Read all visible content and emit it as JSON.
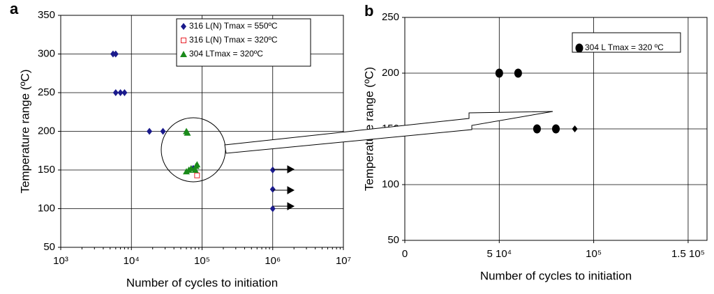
{
  "chart_data": [
    {
      "type": "scatter",
      "panel": "a",
      "x_label": "Number of cycles to initiation",
      "y_label": "Temperature range (ºC)",
      "xlog": true,
      "xlim": [
        1000,
        10000000
      ],
      "ylim": [
        50,
        350
      ],
      "xticks": [
        {
          "value": 1000,
          "label": "10³"
        },
        {
          "value": 10000,
          "label": "10⁴"
        },
        {
          "value": 100000,
          "label": "10⁵"
        },
        {
          "value": 1000000,
          "label": "10⁶"
        },
        {
          "value": 10000000,
          "label": "10⁷"
        }
      ],
      "yticks": [
        50,
        100,
        150,
        200,
        250,
        300,
        350
      ],
      "grid": true,
      "series": [
        {
          "name": "316 L(N) Tmax = 550ºC",
          "color": "#1a1a8c",
          "marker": "diamond",
          "x": [
            5500,
            6000,
            6000,
            7000,
            8000,
            18000,
            28000,
            75000,
            1000000,
            1000000,
            1000000
          ],
          "values": [
            300,
            300,
            250,
            250,
            250,
            200,
            200,
            152,
            150,
            125,
            100
          ]
        },
        {
          "name": "316 L(N) Tmax = 320ºC",
          "color": "#e8222a",
          "marker": "square",
          "x": [
            85000
          ],
          "values": [
            143
          ]
        },
        {
          "name": "304 LTmax = 320ºC",
          "color": "#1a8a1a",
          "marker": "triangle",
          "x": [
            60000,
            62000,
            60000,
            65000,
            80000,
            82000,
            85000,
            70000
          ],
          "values": [
            200,
            198,
            148,
            150,
            150,
            155,
            157,
            152
          ]
        }
      ]
    },
    {
      "type": "scatter",
      "panel": "b",
      "x_label": "Number of cycles to initiation",
      "y_label": "Temperature range (ºC)",
      "xlog": false,
      "xlim": [
        0,
        160000
      ],
      "ylim": [
        50,
        250
      ],
      "xticks": [
        0,
        {
          "value": 50000,
          "label": "5 10⁴"
        },
        {
          "value": 100000,
          "label": "10⁵"
        },
        {
          "value": 150000,
          "label": "1.5 10⁵"
        }
      ],
      "yticks": [
        50,
        100,
        150,
        200,
        250
      ],
      "grid": true,
      "series": [
        {
          "name": "304 L  Tmax = 320 ºC",
          "color": "#000000",
          "marker": "circle",
          "x": [
            50000,
            60000,
            70000,
            80000
          ],
          "values": [
            200,
            200,
            150,
            150
          ]
        },
        {
          "color": "#000000",
          "marker": "diamond",
          "x": [
            90000
          ],
          "values": [
            150
          ]
        }
      ]
    }
  ]
}
